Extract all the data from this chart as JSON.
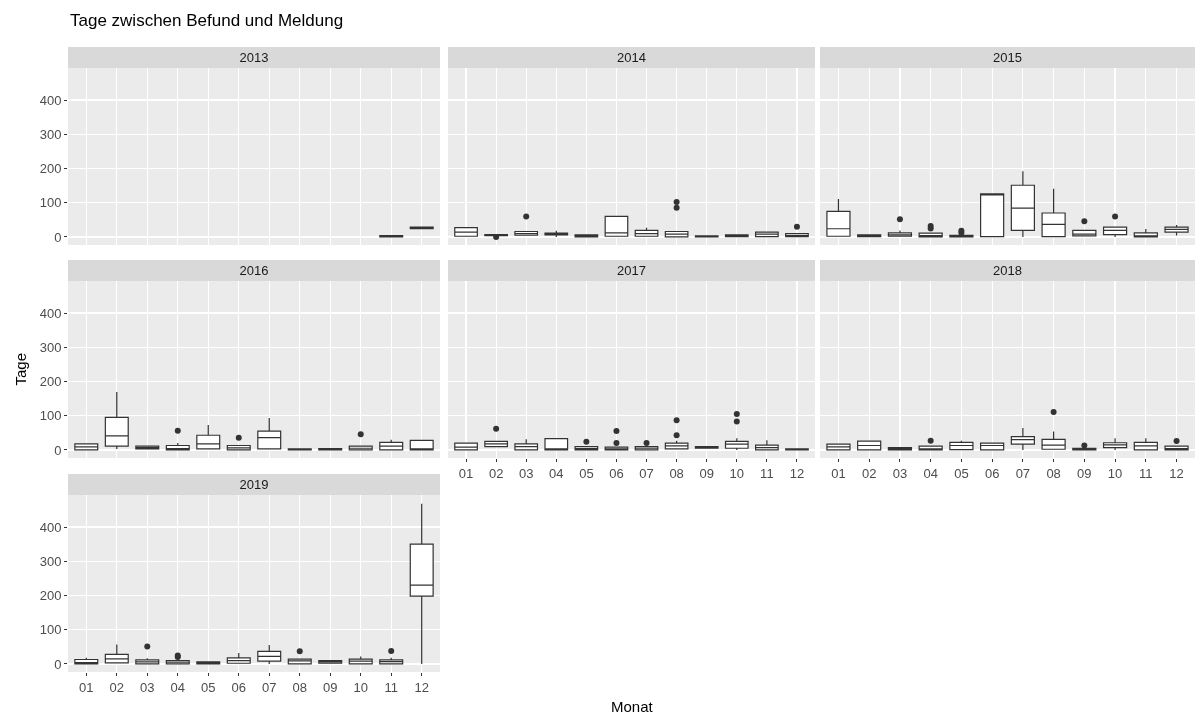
{
  "chart_data": [
    {
      "type": "box",
      "title": "2013",
      "annotations": [
        "Tage zwischen Befund und Meldung"
      ],
      "categories": [
        "01",
        "02",
        "03",
        "04",
        "05",
        "06",
        "07",
        "08",
        "09",
        "10",
        "11",
        "12"
      ],
      "boxes": [
        null,
        null,
        null,
        null,
        null,
        null,
        null,
        null,
        null,
        null,
        {
          "low": 0,
          "q1": 0,
          "median": 2,
          "q3": 4,
          "high": 4
        },
        {
          "low": 24,
          "q1": 24,
          "median": 27,
          "q3": 29,
          "high": 29
        }
      ],
      "ylim": [
        -23.5,
        493.5
      ],
      "yticks": [
        0,
        100,
        200,
        300,
        400
      ],
      "grid": true,
      "tick_labels": "y"
    },
    {
      "type": "box",
      "title": "2014",
      "categories": [
        "01",
        "02",
        "03",
        "04",
        "05",
        "06",
        "07",
        "08",
        "09",
        "10",
        "11",
        "12"
      ],
      "boxes": [
        {
          "low": 2,
          "q1": 2,
          "median": 14,
          "q3": 27,
          "high": 27
        },
        {
          "low": 4,
          "q1": 4,
          "median": 5,
          "q3": 7,
          "high": 7,
          "outliers": [
            0
          ]
        },
        {
          "low": 5,
          "q1": 5,
          "median": 10,
          "q3": 16,
          "high": 16,
          "outliers": [
            60
          ]
        },
        {
          "low": 0,
          "q1": 6,
          "median": 8,
          "q3": 11,
          "high": 18
        },
        {
          "low": 0,
          "q1": 0,
          "median": 2,
          "q3": 6,
          "high": 6
        },
        {
          "low": 2,
          "q1": 2,
          "median": 12,
          "q3": 60,
          "high": 60
        },
        {
          "low": 2,
          "q1": 2,
          "median": 10,
          "q3": 19,
          "high": 27
        },
        {
          "low": 0,
          "q1": 0,
          "median": 8,
          "q3": 16,
          "high": 16,
          "outliers": [
            85,
            102
          ]
        },
        {
          "low": 0,
          "q1": 0,
          "median": 1,
          "q3": 3,
          "high": 3
        },
        {
          "low": 1,
          "q1": 1,
          "median": 3,
          "q3": 6,
          "high": 6
        },
        {
          "low": 1,
          "q1": 1,
          "median": 8,
          "q3": 14,
          "high": 14
        },
        {
          "low": 1,
          "q1": 1,
          "median": 4,
          "q3": 10,
          "high": 10,
          "outliers": [
            30
          ]
        }
      ],
      "ylim": [
        -23.5,
        493.5
      ],
      "yticks": [
        0,
        100,
        200,
        300,
        400
      ],
      "grid": true,
      "tick_labels": false
    },
    {
      "type": "box",
      "title": "2015",
      "categories": [
        "01",
        "02",
        "03",
        "04",
        "05",
        "06",
        "07",
        "08",
        "09",
        "10",
        "11",
        "12"
      ],
      "boxes": [
        {
          "low": 2,
          "q1": 2,
          "median": 24,
          "q3": 75,
          "high": 111
        },
        {
          "low": 1,
          "q1": 1,
          "median": 3,
          "q3": 6,
          "high": 6
        },
        {
          "low": 2,
          "q1": 2,
          "median": 6,
          "q3": 12,
          "high": 19,
          "outliers": [
            52
          ]
        },
        {
          "low": 0,
          "q1": 0,
          "median": 4,
          "q3": 11,
          "high": 11,
          "outliers": [
            25,
            32
          ]
        },
        {
          "low": 0,
          "q1": 0,
          "median": 1,
          "q3": 5,
          "high": 5,
          "outliers": [
            12,
            18
          ]
        },
        {
          "low": 1,
          "q1": 1,
          "median": 124,
          "q3": 126,
          "high": 126
        },
        {
          "low": 0,
          "q1": 19,
          "median": 84,
          "q3": 151,
          "high": 192
        },
        {
          "low": 1,
          "q1": 1,
          "median": 37,
          "q3": 70,
          "high": 141
        },
        {
          "low": 3,
          "q1": 3,
          "median": 8,
          "q3": 19,
          "high": 19,
          "outliers": [
            46
          ]
        },
        {
          "low": 0,
          "q1": 7,
          "median": 19,
          "q3": 29,
          "high": 29,
          "outliers": [
            60
          ]
        },
        {
          "low": 0,
          "q1": 0,
          "median": 3,
          "q3": 12,
          "high": 23
        },
        {
          "low": 4,
          "q1": 14,
          "median": 22,
          "q3": 29,
          "high": 35
        }
      ],
      "ylim": [
        -23.5,
        493.5
      ],
      "yticks": [
        0,
        100,
        200,
        300,
        400
      ],
      "grid": true,
      "tick_labels": false
    },
    {
      "type": "box",
      "title": "2016",
      "ylabel": "Tage",
      "categories": [
        "01",
        "02",
        "03",
        "04",
        "05",
        "06",
        "07",
        "08",
        "09",
        "10",
        "11",
        "12"
      ],
      "boxes": [
        {
          "low": 0,
          "q1": 0,
          "median": 9,
          "q3": 18,
          "high": 18
        },
        {
          "low": 3,
          "q1": 11,
          "median": 41,
          "q3": 95,
          "high": 169
        },
        {
          "low": 3,
          "q1": 3,
          "median": 7,
          "q3": 11,
          "high": 11
        },
        {
          "low": 0,
          "q1": 0,
          "median": 4,
          "q3": 13,
          "high": 20,
          "outliers": [
            56
          ]
        },
        {
          "low": 3,
          "q1": 3,
          "median": 18,
          "q3": 43,
          "high": 73
        },
        {
          "low": 0,
          "q1": 0,
          "median": 6,
          "q3": 13,
          "high": 13,
          "outliers": [
            36
          ]
        },
        {
          "low": 3,
          "q1": 3,
          "median": 36,
          "q3": 55,
          "high": 93
        },
        {
          "low": 0,
          "q1": 0,
          "median": 1,
          "q3": 3,
          "high": 3
        },
        {
          "low": 0,
          "q1": 0,
          "median": 1,
          "q3": 4,
          "high": 4
        },
        {
          "low": 0,
          "q1": 0,
          "median": 5,
          "q3": 11,
          "high": 11,
          "outliers": [
            46
          ]
        },
        {
          "low": 0,
          "q1": 0,
          "median": 11,
          "q3": 22,
          "high": 30
        },
        {
          "low": 0,
          "q1": 0,
          "median": 2,
          "q3": 28,
          "high": 28
        }
      ],
      "ylim": [
        -23.5,
        493.5
      ],
      "yticks": [
        0,
        100,
        200,
        300,
        400
      ],
      "grid": true,
      "tick_labels": "y"
    },
    {
      "type": "box",
      "title": "2017",
      "xlabel": "Monat",
      "categories": [
        "01",
        "02",
        "03",
        "04",
        "05",
        "06",
        "07",
        "08",
        "09",
        "10",
        "11",
        "12"
      ],
      "boxes": [
        {
          "low": 0,
          "q1": 0,
          "median": 8,
          "q3": 20,
          "high": 20
        },
        {
          "low": 10,
          "q1": 10,
          "median": 18,
          "q3": 25,
          "high": 25,
          "outliers": [
            62
          ]
        },
        {
          "low": 0,
          "q1": 0,
          "median": 10,
          "q3": 18,
          "high": 31
        },
        {
          "low": 0,
          "q1": 0,
          "median": 2,
          "q3": 33,
          "high": 33
        },
        {
          "low": 0,
          "q1": 0,
          "median": 4,
          "q3": 10,
          "high": 10,
          "outliers": [
            24
          ]
        },
        {
          "low": 0,
          "q1": 0,
          "median": 3,
          "q3": 8,
          "high": 8,
          "outliers": [
            20,
            55
          ]
        },
        {
          "low": 0,
          "q1": 0,
          "median": 5,
          "q3": 10,
          "high": 10,
          "outliers": [
            20
          ]
        },
        {
          "low": 3,
          "q1": 3,
          "median": 12,
          "q3": 20,
          "high": 27,
          "outliers": [
            43,
            87
          ]
        },
        {
          "low": 5,
          "q1": 5,
          "median": 7,
          "q3": 10,
          "high": 10
        },
        {
          "low": 0,
          "q1": 5,
          "median": 17,
          "q3": 25,
          "high": 34,
          "outliers": [
            83,
            105
          ]
        },
        {
          "low": 0,
          "q1": 0,
          "median": 7,
          "q3": 14,
          "high": 28
        },
        {
          "low": 0,
          "q1": 0,
          "median": 1,
          "q3": 3,
          "high": 3
        }
      ],
      "ylim": [
        -23.5,
        493.5
      ],
      "yticks": [
        0,
        100,
        200,
        300,
        400
      ],
      "grid": true,
      "tick_labels": "x"
    },
    {
      "type": "box",
      "title": "2018",
      "categories": [
        "01",
        "02",
        "03",
        "04",
        "05",
        "06",
        "07",
        "08",
        "09",
        "10",
        "11",
        "12"
      ],
      "boxes": [
        {
          "low": 0,
          "q1": 0,
          "median": 9,
          "q3": 17,
          "high": 17
        },
        {
          "low": 0,
          "q1": 0,
          "median": 13,
          "q3": 26,
          "high": 26
        },
        {
          "low": 0,
          "q1": 0,
          "median": 2,
          "q3": 7,
          "high": 7
        },
        {
          "low": 0,
          "q1": 0,
          "median": 3,
          "q3": 11,
          "high": 11,
          "outliers": [
            27
          ]
        },
        {
          "low": 1,
          "q1": 1,
          "median": 13,
          "q3": 22,
          "high": 27
        },
        {
          "low": 0,
          "q1": 0,
          "median": 13,
          "q3": 20,
          "high": 20
        },
        {
          "low": 0,
          "q1": 17,
          "median": 30,
          "q3": 39,
          "high": 64
        },
        {
          "low": 2,
          "q1": 2,
          "median": 14,
          "q3": 31,
          "high": 54,
          "outliers": [
            111
          ]
        },
        {
          "low": 0,
          "q1": 0,
          "median": 1,
          "q3": 5,
          "high": 5,
          "outliers": [
            13
          ]
        },
        {
          "low": 0,
          "q1": 7,
          "median": 15,
          "q3": 21,
          "high": 34
        },
        {
          "low": 0,
          "q1": 0,
          "median": 12,
          "q3": 22,
          "high": 34
        },
        {
          "low": 0,
          "q1": 0,
          "median": 4,
          "q3": 11,
          "high": 11,
          "outliers": [
            26
          ]
        }
      ],
      "ylim": [
        -23.5,
        493.5
      ],
      "yticks": [
        0,
        100,
        200,
        300,
        400
      ],
      "grid": true,
      "tick_labels": "x"
    },
    {
      "type": "box",
      "title": "2019",
      "categories": [
        "01",
        "02",
        "03",
        "04",
        "05",
        "06",
        "07",
        "08",
        "09",
        "10",
        "11",
        "12"
      ],
      "boxes": [
        {
          "low": 0,
          "q1": 0,
          "median": 4,
          "q3": 13,
          "high": 18
        },
        {
          "low": 3,
          "q1": 3,
          "median": 15,
          "q3": 28,
          "high": 57
        },
        {
          "low": 0,
          "q1": 0,
          "median": 6,
          "q3": 12,
          "high": 17,
          "outliers": [
            51
          ]
        },
        {
          "low": 0,
          "q1": 0,
          "median": 5,
          "q3": 10,
          "high": 10,
          "outliers": [
            20,
            25
          ]
        },
        {
          "low": 0,
          "q1": 0,
          "median": 3,
          "q3": 6,
          "high": 6
        },
        {
          "low": 2,
          "q1": 2,
          "median": 10,
          "q3": 18,
          "high": 32
        },
        {
          "low": 0,
          "q1": 8,
          "median": 22,
          "q3": 37,
          "high": 55
        },
        {
          "low": 0,
          "q1": 0,
          "median": 9,
          "q3": 14,
          "high": 14,
          "outliers": [
            37
          ]
        },
        {
          "low": 2,
          "q1": 2,
          "median": 6,
          "q3": 10,
          "high": 10
        },
        {
          "low": 0,
          "q1": 0,
          "median": 8,
          "q3": 14,
          "high": 22
        },
        {
          "low": 0,
          "q1": 0,
          "median": 7,
          "q3": 12,
          "high": 18,
          "outliers": [
            38
          ]
        },
        {
          "low": 0,
          "q1": 198,
          "median": 230,
          "q3": 350,
          "high": 468
        }
      ],
      "ylim": [
        -23.5,
        493.5
      ],
      "yticks": [
        0,
        100,
        200,
        300,
        400
      ],
      "grid": true
    }
  ]
}
